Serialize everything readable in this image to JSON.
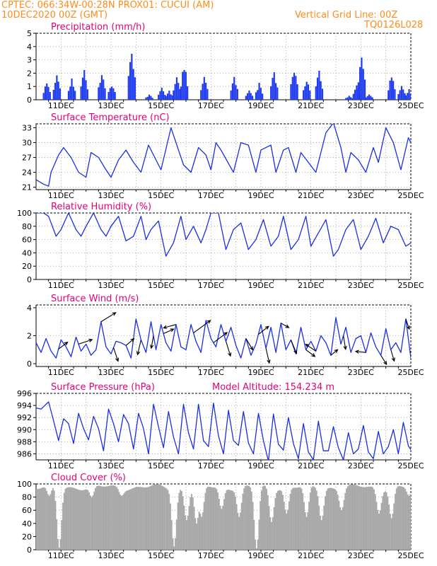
{
  "header": {
    "line1": "CPTEC:   066:34W-00:28N   PROX01: CUCUI (AM)",
    "line2": "10DEC2020 00Z (GMT)",
    "grid_note": "Vertical Grid Line: 00Z",
    "code": "TQ0126L028"
  },
  "colors": {
    "header": "#ff8c1a",
    "title": "#e6007a",
    "line": "#1a2ee6",
    "bar": "#1f3cf0",
    "cloud": "#a9a9a9",
    "arrow": "#000000"
  },
  "chart_data": [
    {
      "type": "bar",
      "title": "Precipitation (mm/h)",
      "ylim": [
        0,
        5
      ],
      "yticks": [
        0,
        1,
        2,
        3,
        4,
        5
      ],
      "x_tick_labels": [
        "11DEC",
        "13DEC",
        "15DEC",
        "17DEC",
        "19DEC",
        "21DEC",
        "23DEC",
        "25DEC"
      ],
      "xlim_days": [
        10,
        25
      ],
      "grid": true,
      "bursts": [
        {
          "center": 10.4,
          "peak": 1.4
        },
        {
          "center": 10.8,
          "peak": 1.9
        },
        {
          "center": 11.4,
          "peak": 1.6
        },
        {
          "center": 11.9,
          "peak": 2.3
        },
        {
          "center": 12.6,
          "peak": 2.1
        },
        {
          "center": 13.0,
          "peak": 1.3
        },
        {
          "center": 13.8,
          "peak": 4.0
        },
        {
          "center": 14.5,
          "peak": 0.4
        },
        {
          "center": 15.0,
          "peak": 0.9
        },
        {
          "center": 15.3,
          "peak": 0.7
        },
        {
          "center": 15.6,
          "peak": 1.9
        },
        {
          "center": 15.9,
          "peak": 2.9
        },
        {
          "center": 16.7,
          "peak": 2.0
        },
        {
          "center": 17.9,
          "peak": 1.8
        },
        {
          "center": 18.5,
          "peak": 0.7
        },
        {
          "center": 18.9,
          "peak": 1.3
        },
        {
          "center": 19.5,
          "peak": 2.3
        },
        {
          "center": 20.3,
          "peak": 2.6
        },
        {
          "center": 20.8,
          "peak": 1.6
        },
        {
          "center": 21.3,
          "peak": 2.3
        },
        {
          "center": 22.5,
          "peak": 0.3
        },
        {
          "center": 22.8,
          "peak": 1.1
        },
        {
          "center": 23.0,
          "peak": 3.5
        },
        {
          "center": 23.3,
          "peak": 0.5
        },
        {
          "center": 24.2,
          "peak": 2.0
        },
        {
          "center": 24.6,
          "peak": 1.1
        },
        {
          "center": 24.9,
          "peak": 0.8
        }
      ]
    },
    {
      "type": "line",
      "title": "Surface Temperature (nC)",
      "ylim": [
        20.5,
        33.8
      ],
      "yticks": [
        21,
        24,
        27,
        30,
        33
      ],
      "x_tick_labels": [
        "11DEC",
        "13DEC",
        "15DEC",
        "17DEC",
        "19DEC",
        "21DEC",
        "23DEC",
        "25DEC"
      ],
      "series": [
        {
          "x": [
            10.0,
            10.3,
            10.5,
            10.6,
            10.9,
            11.1,
            11.4,
            11.7,
            12.0,
            12.2,
            12.5,
            12.8,
            13.0,
            13.3,
            13.6,
            13.9,
            14.2,
            14.5,
            14.8,
            15.0,
            15.4,
            15.6,
            15.9,
            16.2,
            16.5,
            16.8,
            17.0,
            17.2,
            17.4,
            17.9,
            18.2,
            18.5,
            18.8,
            19.0,
            19.4,
            19.6,
            19.9,
            20.1,
            20.4,
            20.6,
            20.9,
            21.2,
            21.4,
            21.6,
            21.9,
            22.2,
            22.4,
            22.6,
            22.9,
            23.2,
            23.5,
            23.7,
            24.0,
            24.3,
            24.6,
            24.9,
            25.0
          ],
          "values": [
            22.5,
            21.6,
            21.2,
            24.0,
            27.5,
            29.0,
            27.0,
            24.0,
            23.0,
            28.0,
            27.0,
            24.5,
            23.0,
            26.5,
            28.5,
            26.0,
            24.0,
            29.5,
            26.5,
            24.5,
            33.0,
            30.0,
            25.5,
            24.0,
            29.0,
            27.5,
            24.5,
            30.0,
            28.5,
            24.0,
            30.0,
            29.5,
            24.0,
            28.5,
            29.5,
            24.0,
            28.5,
            29.0,
            24.0,
            28.0,
            26.0,
            24.0,
            28.0,
            32.0,
            34.0,
            29.0,
            24.0,
            28.0,
            26.5,
            24.0,
            29.0,
            26.0,
            33.0,
            30.0,
            24.5,
            31.0,
            30.0
          ]
        }
      ]
    },
    {
      "type": "line",
      "title": "Relative Humidity (%)",
      "ylim": [
        0,
        100
      ],
      "yticks": [
        0,
        20,
        40,
        60,
        80,
        100
      ],
      "x_tick_labels": [
        "11DEC",
        "13DEC",
        "15DEC",
        "17DEC",
        "19DEC",
        "21DEC",
        "23DEC",
        "25DEC"
      ],
      "series": [
        {
          "x": [
            10.0,
            10.3,
            10.5,
            10.8,
            11.0,
            11.3,
            11.6,
            11.8,
            12.0,
            12.3,
            12.6,
            12.8,
            13.0,
            13.3,
            13.6,
            13.9,
            14.2,
            14.4,
            14.6,
            14.9,
            15.2,
            15.5,
            15.8,
            16.0,
            16.3,
            16.6,
            16.8,
            17.0,
            17.3,
            17.6,
            17.9,
            18.2,
            18.5,
            18.8,
            19.1,
            19.4,
            19.7,
            19.9,
            20.2,
            20.5,
            20.8,
            21.0,
            21.3,
            21.6,
            21.9,
            22.1,
            22.4,
            22.7,
            23.0,
            23.3,
            23.6,
            23.9,
            24.2,
            24.5,
            24.8,
            25.0
          ],
          "values": [
            100,
            100,
            95,
            65,
            75,
            100,
            75,
            65,
            80,
            100,
            75,
            65,
            80,
            95,
            58,
            65,
            95,
            60,
            75,
            88,
            35,
            55,
            95,
            60,
            80,
            55,
            75,
            100,
            100,
            45,
            75,
            85,
            45,
            60,
            90,
            50,
            65,
            95,
            45,
            60,
            95,
            50,
            70,
            90,
            35,
            45,
            75,
            90,
            45,
            65,
            92,
            55,
            80,
            75,
            50,
            55
          ]
        }
      ]
    },
    {
      "type": "line",
      "title": "Surface Wind (m/s)",
      "ylim": [
        -0.2,
        4.2
      ],
      "yticks": [
        0,
        2,
        4
      ],
      "x_tick_labels": [
        "11DEC",
        "13DEC",
        "15DEC",
        "17DEC",
        "19DEC",
        "21DEC",
        "23DEC",
        "25DEC"
      ],
      "series": [
        {
          "x": [
            10.0,
            10.2,
            10.4,
            10.6,
            10.8,
            11.0,
            11.2,
            11.4,
            11.6,
            11.8,
            12.0,
            12.2,
            12.4,
            12.6,
            12.8,
            13.0,
            13.2,
            13.4,
            13.6,
            13.8,
            14.0,
            14.2,
            14.4,
            14.6,
            14.8,
            15.0,
            15.2,
            15.4,
            15.6,
            15.8,
            16.0,
            16.2,
            16.4,
            16.6,
            16.8,
            17.0,
            17.2,
            17.4,
            17.6,
            17.8,
            18.0,
            18.2,
            18.4,
            18.6,
            18.8,
            19.0,
            19.2,
            19.4,
            19.6,
            19.8,
            20.0,
            20.2,
            20.4,
            20.6,
            20.8,
            21.0,
            21.2,
            21.4,
            21.6,
            21.8,
            22.0,
            22.2,
            22.4,
            22.6,
            22.8,
            23.0,
            23.2,
            23.4,
            23.6,
            23.8,
            24.0,
            24.2,
            24.4,
            24.6,
            24.8,
            25.0
          ],
          "values": [
            1.5,
            0.8,
            1.8,
            0.9,
            0.4,
            1.7,
            1.2,
            0.5,
            1.9,
            0.9,
            1.4,
            0.6,
            1.0,
            3.0,
            1.2,
            0.7,
            1.6,
            1.5,
            1.3,
            0.4,
            3.2,
            1.7,
            0.8,
            3.0,
            1.0,
            2.8,
            1.5,
            0.9,
            2.8,
            1.2,
            1.0,
            2.8,
            1.6,
            0.8,
            3.1,
            1.8,
            1.2,
            2.8,
            1.6,
            2.6,
            1.3,
            0.4,
            1.8,
            0.6,
            1.4,
            2.8,
            1.1,
            2.6,
            0.8,
            2.9,
            1.0,
            1.7,
            0.7,
            2.6,
            1.0,
            1.6,
            0.9,
            2.0,
            1.5,
            0.6,
            3.3,
            1.4,
            2.6,
            0.8,
            1.8,
            2.0,
            0.8,
            2.2,
            1.2,
            0.6,
            2.5,
            1.0,
            1.5,
            0.8,
            3.2,
            0.4
          ]
        }
      ],
      "wind_arrows": [
        {
          "day": 10.9,
          "u": 0.8,
          "v": 0.6
        },
        {
          "day": 11.7,
          "u": 1.2,
          "v": 0.4
        },
        {
          "day": 12.6,
          "u": 1.3,
          "v": 0.8
        },
        {
          "day": 13.1,
          "u": 0.4,
          "v": -1.2
        },
        {
          "day": 13.6,
          "u": 0.7,
          "v": 0.6
        },
        {
          "day": 14.2,
          "u": -0.3,
          "v": -1.3
        },
        {
          "day": 14.7,
          "u": -0.2,
          "v": -1.1
        },
        {
          "day": 15.1,
          "u": 0.9,
          "v": 0.4
        },
        {
          "day": 15.6,
          "u": -1.1,
          "v": -0.3
        },
        {
          "day": 16.3,
          "u": 1.5,
          "v": 1.1
        },
        {
          "day": 17.1,
          "u": 1.2,
          "v": 0.9
        },
        {
          "day": 17.6,
          "u": 0.4,
          "v": -1.3
        },
        {
          "day": 18.4,
          "u": 0.6,
          "v": -1.0
        },
        {
          "day": 18.9,
          "u": 0.9,
          "v": 0.7
        },
        {
          "day": 19.2,
          "u": 0.3,
          "v": -1.3
        },
        {
          "day": 19.8,
          "u": 0.7,
          "v": -0.4
        },
        {
          "day": 20.2,
          "u": 0.5,
          "v": -1.2
        },
        {
          "day": 20.8,
          "u": 0.8,
          "v": -0.6
        },
        {
          "day": 21.2,
          "u": -0.9,
          "v": 0.6
        },
        {
          "day": 21.8,
          "u": 0.6,
          "v": 0.5
        },
        {
          "day": 22.3,
          "u": 0.2,
          "v": -1.2
        },
        {
          "day": 23.2,
          "u": -0.9,
          "v": 0.1
        },
        {
          "day": 23.8,
          "u": 0.5,
          "v": -0.8
        },
        {
          "day": 24.2,
          "u": 0.3,
          "v": -1.0
        },
        {
          "day": 24.8,
          "u": 0.3,
          "v": -0.9
        }
      ]
    },
    {
      "type": "line",
      "title": "Surface Pressure (hPa)",
      "annotation": "Model Altitude: 154.234  m",
      "ylim": [
        985,
        996
      ],
      "yticks": [
        986,
        988,
        990,
        992,
        994,
        996
      ],
      "x_tick_labels": [
        "11DEC",
        "13DEC",
        "15DEC",
        "17DEC",
        "19DEC",
        "21DEC",
        "23DEC",
        "25DEC"
      ],
      "series": [
        {
          "x": [
            10.0,
            10.2,
            10.5,
            10.7,
            10.9,
            11.1,
            11.3,
            11.5,
            11.7,
            11.9,
            12.1,
            12.3,
            12.5,
            12.7,
            12.9,
            13.1,
            13.3,
            13.5,
            13.7,
            13.9,
            14.1,
            14.3,
            14.5,
            14.7,
            14.9,
            15.1,
            15.3,
            15.5,
            15.7,
            15.9,
            16.1,
            16.3,
            16.5,
            16.7,
            16.9,
            17.1,
            17.3,
            17.5,
            17.7,
            17.9,
            18.1,
            18.3,
            18.5,
            18.7,
            18.9,
            19.1,
            19.3,
            19.5,
            19.7,
            19.9,
            20.1,
            20.3,
            20.5,
            20.7,
            20.9,
            21.1,
            21.3,
            21.5,
            21.7,
            21.9,
            22.1,
            22.3,
            22.5,
            22.7,
            22.9,
            23.1,
            23.3,
            23.5,
            23.7,
            23.9,
            24.1,
            24.3,
            24.5,
            24.7,
            24.9,
            25.0
          ],
          "values": [
            993.6,
            993.4,
            994.6,
            991.5,
            988.2,
            991.8,
            991.0,
            987.7,
            992.7,
            990.2,
            988.3,
            992.2,
            990.2,
            986.5,
            993.4,
            991.0,
            988.0,
            992.5,
            991.0,
            986.8,
            992.7,
            990.2,
            986.0,
            994.2,
            990.5,
            987.0,
            993.0,
            988.8,
            986.0,
            994.2,
            989.5,
            986.8,
            994.2,
            988.2,
            987.2,
            994.4,
            989.0,
            986.0,
            993.2,
            988.2,
            987.4,
            993.0,
            987.8,
            986.0,
            992.7,
            988.2,
            984.8,
            992.6,
            987.6,
            986.6,
            992.0,
            987.7,
            985.2,
            991.0,
            986.3,
            985.0,
            991.4,
            986.5,
            986.5,
            990.5,
            987.0,
            985.0,
            989.5,
            986.0,
            986.8,
            990.7,
            986.3,
            985.2,
            989.7,
            986.0,
            987.2,
            990.0,
            986.0,
            991.2,
            987.3,
            986.7
          ]
        }
      ]
    },
    {
      "type": "area",
      "title": "Cloud Cover (%)",
      "ylim": [
        0,
        100
      ],
      "yticks": [
        0,
        20,
        40,
        60,
        80,
        100
      ],
      "x_tick_labels": [
        "11DEC",
        "13DEC",
        "15DEC",
        "17DEC",
        "19DEC",
        "21DEC",
        "23DEC",
        "25DEC"
      ],
      "base_level": 95,
      "dips": [
        {
          "day": 10.9,
          "value": 3
        },
        {
          "day": 10.5,
          "value": 82
        },
        {
          "day": 12.2,
          "value": 80
        },
        {
          "day": 13.4,
          "value": 82
        },
        {
          "day": 15.5,
          "value": 5
        },
        {
          "day": 16.0,
          "value": 45
        },
        {
          "day": 16.4,
          "value": 40
        },
        {
          "day": 16.6,
          "value": 50
        },
        {
          "day": 17.4,
          "value": 62
        },
        {
          "day": 18.1,
          "value": 50
        },
        {
          "day": 18.8,
          "value": 2
        },
        {
          "day": 19.4,
          "value": 42
        },
        {
          "day": 20.0,
          "value": 55
        },
        {
          "day": 20.8,
          "value": 50
        },
        {
          "day": 21.4,
          "value": 45
        },
        {
          "day": 22.2,
          "value": 60
        },
        {
          "day": 23.7,
          "value": 55
        },
        {
          "day": 24.2,
          "value": 48
        },
        {
          "day": 24.9,
          "value": 82
        }
      ]
    }
  ]
}
